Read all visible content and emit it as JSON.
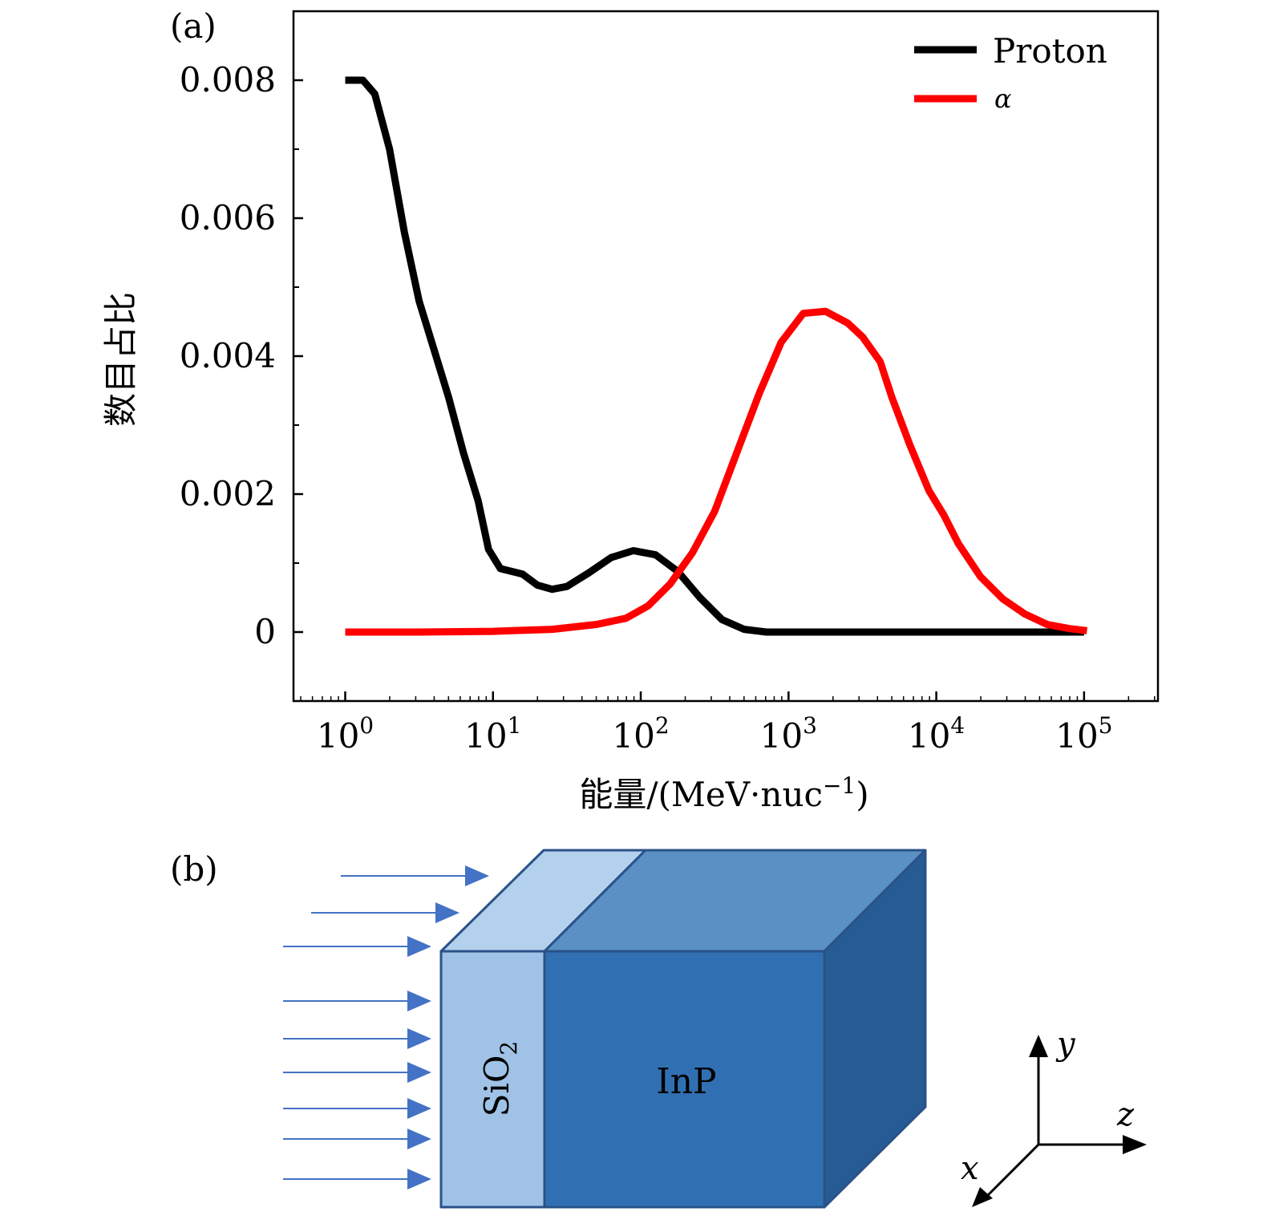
{
  "panel_a": {
    "label": "(a)",
    "chart_data": {
      "type": "line",
      "xscale": "log",
      "xlim_log10": [
        -0.35,
        5.5
      ],
      "ylim": [
        -0.001,
        0.009
      ],
      "xlabel": "能量/(MeV·nuc",
      "xlabel_sup": "−1",
      "xlabel_end": ")",
      "ylabel": "数目占比",
      "yticks": [
        {
          "value": 0,
          "label": "0"
        },
        {
          "value": 0.002,
          "label": "0.002"
        },
        {
          "value": 0.004,
          "label": "0.004"
        },
        {
          "value": 0.006,
          "label": "0.006"
        },
        {
          "value": 0.008,
          "label": "0.008"
        }
      ],
      "xticks": [
        {
          "exp": 0,
          "base": "10",
          "sup": "0"
        },
        {
          "exp": 1,
          "base": "10",
          "sup": "1"
        },
        {
          "exp": 2,
          "base": "10",
          "sup": "2"
        },
        {
          "exp": 3,
          "base": "10",
          "sup": "3"
        },
        {
          "exp": 4,
          "base": "10",
          "sup": "4"
        },
        {
          "exp": 5,
          "base": "10",
          "sup": "5"
        }
      ],
      "series": [
        {
          "name": "Proton",
          "color": "#000000",
          "points_log10x": [
            [
              0.0,
              0.008
            ],
            [
              0.12,
              0.008
            ],
            [
              0.2,
              0.0078
            ],
            [
              0.3,
              0.007
            ],
            [
              0.4,
              0.0058
            ],
            [
              0.5,
              0.0048
            ],
            [
              0.6,
              0.0041
            ],
            [
              0.7,
              0.0034
            ],
            [
              0.8,
              0.0026
            ],
            [
              0.9,
              0.0019
            ],
            [
              0.97,
              0.0012
            ],
            [
              1.05,
              0.00092
            ],
            [
              1.2,
              0.00084
            ],
            [
              1.3,
              0.00068
            ],
            [
              1.4,
              0.00062
            ],
            [
              1.5,
              0.00066
            ],
            [
              1.65,
              0.00086
            ],
            [
              1.8,
              0.00108
            ],
            [
              1.95,
              0.00118
            ],
            [
              2.1,
              0.00112
            ],
            [
              2.25,
              0.00088
            ],
            [
              2.4,
              0.0005
            ],
            [
              2.55,
              0.00018
            ],
            [
              2.7,
              4e-05
            ],
            [
              2.85,
              0.0
            ],
            [
              3.5,
              0.0
            ],
            [
              4.5,
              0.0
            ],
            [
              5.0,
              0.0
            ]
          ]
        },
        {
          "name": "α",
          "color": "#ff0000",
          "points_log10x": [
            [
              0.0,
              0.0
            ],
            [
              0.5,
              0.0
            ],
            [
              1.0,
              1e-05
            ],
            [
              1.4,
              4e-05
            ],
            [
              1.7,
              0.00011
            ],
            [
              1.9,
              0.0002
            ],
            [
              2.05,
              0.00038
            ],
            [
              2.2,
              0.0007
            ],
            [
              2.35,
              0.00115
            ],
            [
              2.5,
              0.00175
            ],
            [
              2.65,
              0.0026
            ],
            [
              2.8,
              0.00345
            ],
            [
              2.95,
              0.0042
            ],
            [
              3.1,
              0.00462
            ],
            [
              3.25,
              0.00465
            ],
            [
              3.4,
              0.00448
            ],
            [
              3.5,
              0.00428
            ],
            [
              3.62,
              0.00392
            ],
            [
              3.7,
              0.0034
            ],
            [
              3.82,
              0.00272
            ],
            [
              3.95,
              0.00205
            ],
            [
              4.05,
              0.0017
            ],
            [
              4.15,
              0.00128
            ],
            [
              4.3,
              0.0008
            ],
            [
              4.45,
              0.00048
            ],
            [
              4.6,
              0.00026
            ],
            [
              4.75,
              0.00011
            ],
            [
              4.9,
              5e-05
            ],
            [
              5.02,
              2e-05
            ]
          ]
        }
      ],
      "legend": {
        "position": "top-right",
        "entries": [
          "Proton",
          "α"
        ]
      }
    }
  },
  "panel_b": {
    "label": "(b)",
    "layer1": "SiO",
    "layer1_sub": "2",
    "layer2": "InP",
    "axis_y": "y",
    "axis_z": "z",
    "axis_x": "x",
    "colors": {
      "sio2_front": "#9fc2e6",
      "sio2_top": "#b3d0ec",
      "inp_front": "#3070b2",
      "inp_top": "#5a90c4",
      "inp_side": "#265b94",
      "edge": "#2a5288",
      "arrow": "#4472c4"
    }
  }
}
